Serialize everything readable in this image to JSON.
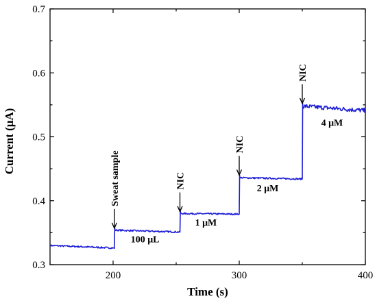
{
  "chart_data": {
    "type": "line",
    "title": "",
    "xlabel": "Time (s)",
    "ylabel": "Current (μA)",
    "xlim": [
      150,
      400
    ],
    "ylim": [
      0.3,
      0.7
    ],
    "xticks": [
      200,
      300,
      400
    ],
    "yticks": [
      0.3,
      0.4,
      0.5,
      0.6,
      0.7
    ],
    "grid": false,
    "series": [
      {
        "color": "#1f1fd6",
        "steps": [
          {
            "x0": 150,
            "x1": 201,
            "y0": 0.33,
            "y1": 0.326
          },
          {
            "x0": 201,
            "x1": 253,
            "y0": 0.354,
            "y1": 0.351
          },
          {
            "x0": 253,
            "x1": 300,
            "y0": 0.38,
            "y1": 0.379
          },
          {
            "x0": 300,
            "x1": 350,
            "y0": 0.436,
            "y1": 0.434
          },
          {
            "x0": 350,
            "x1": 400,
            "y0": 0.548,
            "y1": 0.541
          }
        ]
      }
    ],
    "annotations": [
      {
        "label": "Sweat sample",
        "x": 201,
        "y": 0.357,
        "kind": "arrow"
      },
      {
        "label": "NIC",
        "x": 253,
        "y": 0.383,
        "kind": "arrow"
      },
      {
        "label": "NIC",
        "x": 300,
        "y": 0.44,
        "kind": "arrow"
      },
      {
        "label": "NIC",
        "x": 350,
        "y": 0.552,
        "kind": "arrow"
      },
      {
        "label": "100 μL",
        "x": 214,
        "y": 0.335,
        "kind": "text"
      },
      {
        "label": "1 μM",
        "x": 265,
        "y": 0.361,
        "kind": "text"
      },
      {
        "label": "2 μM",
        "x": 314,
        "y": 0.415,
        "kind": "text"
      },
      {
        "label": "4 μM",
        "x": 365,
        "y": 0.517,
        "kind": "text"
      }
    ]
  }
}
